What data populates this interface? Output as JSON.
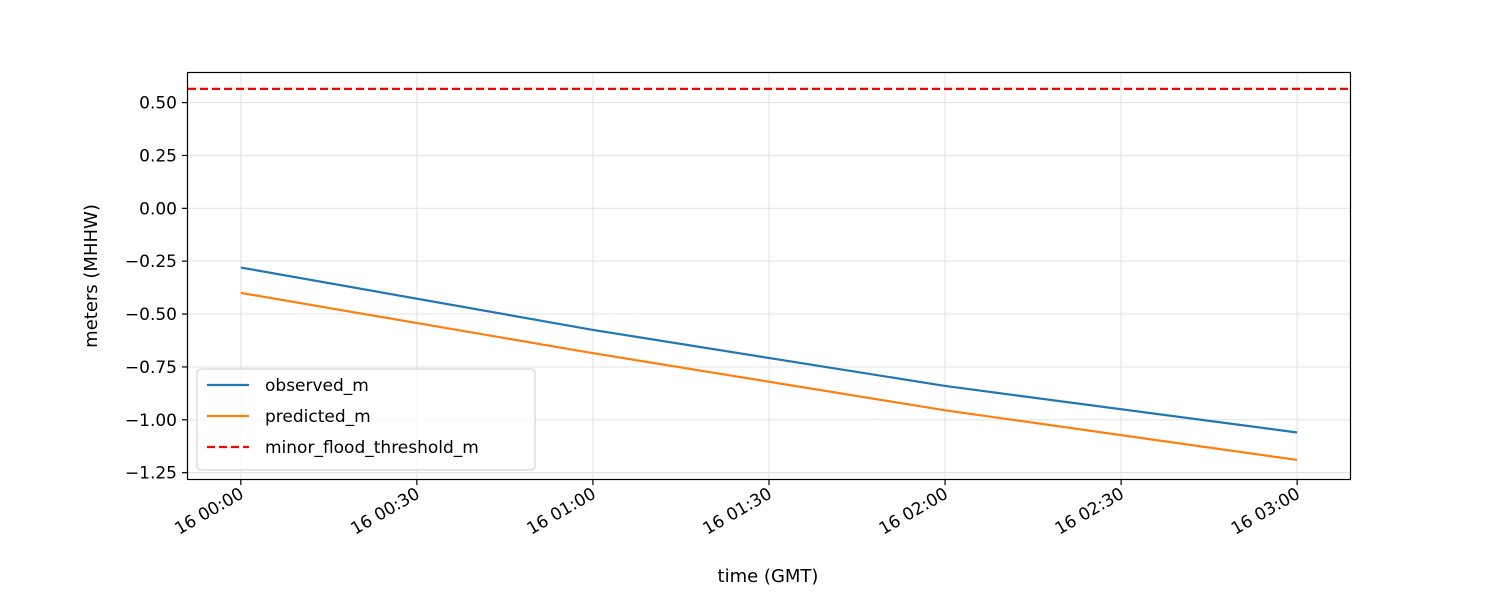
{
  "chart_data": {
    "type": "line",
    "title": "",
    "xlabel": "time (GMT)",
    "ylabel": "meters (MHHW)",
    "x": [
      "16 00:00",
      "16 01:00",
      "16 02:00",
      "16 03:00"
    ],
    "x_minutes": [
      0,
      60,
      120,
      180
    ],
    "xlim_minutes": [
      -9,
      189
    ],
    "ylim": [
      -1.28,
      0.64
    ],
    "x_ticks": [
      {
        "label": "16 00:00",
        "minutes": 0
      },
      {
        "label": "16 00:30",
        "minutes": 30
      },
      {
        "label": "16 01:00",
        "minutes": 60
      },
      {
        "label": "16 01:30",
        "minutes": 90
      },
      {
        "label": "16 02:00",
        "minutes": 120
      },
      {
        "label": "16 02:30",
        "minutes": 150
      },
      {
        "label": "16 03:00",
        "minutes": 180
      }
    ],
    "y_ticks": [
      {
        "label": "0.50",
        "value": 0.5
      },
      {
        "label": "0.25",
        "value": 0.25
      },
      {
        "label": "0.00",
        "value": 0.0
      },
      {
        "label": "−0.25",
        "value": -0.25
      },
      {
        "label": "−0.50",
        "value": -0.5
      },
      {
        "label": "−0.75",
        "value": -0.75
      },
      {
        "label": "−1.00",
        "value": -1.0
      },
      {
        "label": "−1.25",
        "value": -1.25
      }
    ],
    "grid": true,
    "legend_position": "lower-left",
    "series": [
      {
        "name": "observed_m",
        "color": "#1f77b4",
        "style": "solid",
        "values": [
          -0.28,
          -0.575,
          -0.84,
          -1.06
        ]
      },
      {
        "name": "predicted_m",
        "color": "#ff7f0e",
        "style": "solid",
        "values": [
          -0.4,
          -0.685,
          -0.955,
          -1.19
        ]
      }
    ],
    "threshold": {
      "name": "minor_flood_threshold_m",
      "color": "#ff0000",
      "style": "dashed",
      "value": 0.565
    }
  }
}
